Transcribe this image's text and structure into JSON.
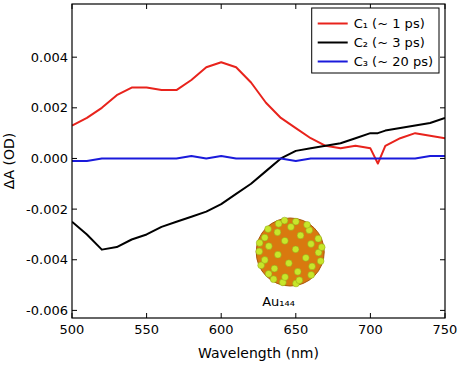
{
  "chart_data": {
    "type": "line",
    "x_label": "Wavelength (nm)",
    "y_label": "ΔA (OD)",
    "annotation": "Au₁₄₄",
    "x": [
      500,
      510,
      520,
      530,
      540,
      550,
      560,
      570,
      580,
      590,
      600,
      610,
      620,
      630,
      640,
      650,
      660,
      670,
      680,
      690,
      700,
      705,
      710,
      720,
      730,
      740,
      750
    ],
    "series": [
      {
        "name": "C₁ (~ 1 ps)",
        "color": "#e8231c",
        "values": [
          0.0013,
          0.0016,
          0.002,
          0.0025,
          0.0028,
          0.0028,
          0.0027,
          0.0027,
          0.0031,
          0.0036,
          0.0038,
          0.0036,
          0.003,
          0.0022,
          0.0016,
          0.0012,
          0.0008,
          0.0005,
          0.0004,
          0.0005,
          0.0004,
          -0.0002,
          0.0005,
          0.0008,
          0.001,
          0.0009,
          0.0008
        ]
      },
      {
        "name": "C₂ (~ 3 ps)",
        "color": "#000000",
        "values": [
          -0.0025,
          -0.003,
          -0.0036,
          -0.0035,
          -0.0032,
          -0.003,
          -0.0027,
          -0.0025,
          -0.0023,
          -0.0021,
          -0.0018,
          -0.0014,
          -0.001,
          -0.0005,
          0.0,
          0.0003,
          0.0004,
          0.0005,
          0.0006,
          0.0008,
          0.001,
          0.001,
          0.0011,
          0.0012,
          0.0013,
          0.0014,
          0.0016
        ]
      },
      {
        "name": "C₃ (~ 20 ps)",
        "color": "#1a1adb",
        "values": [
          -0.0001,
          -0.0001,
          0.0,
          0.0,
          0.0,
          0.0,
          0.0,
          0.0,
          0.0001,
          0.0,
          0.0001,
          0.0,
          0.0,
          0.0,
          0.0,
          -0.0001,
          0.0,
          0.0,
          0.0,
          0.0,
          0.0,
          0.0,
          0.0,
          0.0,
          0.0,
          0.0001,
          0.0001
        ]
      }
    ],
    "xlim": [
      500,
      750
    ],
    "xticks": [
      500,
      550,
      600,
      650,
      700,
      750
    ],
    "ylim": [
      -0.0063,
      0.0061
    ],
    "yticks": [
      -0.006,
      -0.004,
      -0.002,
      {
        "value": 0,
        "label": "0.000"
      },
      0.002,
      0.004
    ],
    "legend": "upper right",
    "grid": false
  }
}
